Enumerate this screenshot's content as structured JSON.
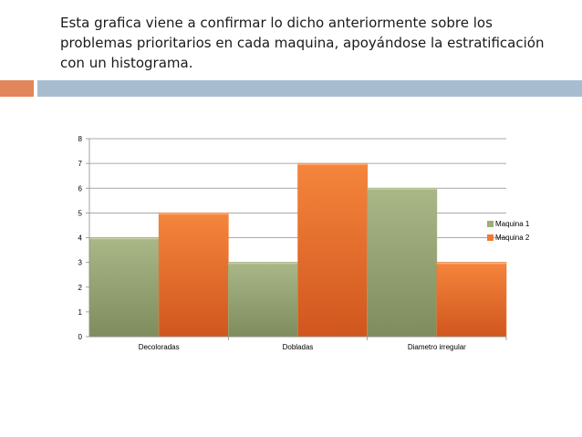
{
  "slide": {
    "text": "Esta grafica viene a confirmar lo dicho anteriormente sobre los problemas prioritarios en cada maquina, apoyándose la estratificación con un histograma."
  },
  "colors": {
    "accent_orange": "#e0865a",
    "accent_blue": "#a8bccf",
    "series_1": "#9fae78",
    "series_2": "#f07a30"
  },
  "chart_data": {
    "type": "bar",
    "categories": [
      "Decoloradas",
      "Dobladas",
      "Diametro irregular"
    ],
    "series": [
      {
        "name": "Maquina 1",
        "values": [
          4,
          3,
          6
        ]
      },
      {
        "name": "Maquina 2",
        "values": [
          5,
          7,
          3
        ]
      }
    ],
    "ylim": [
      0,
      8
    ],
    "yticks": [
      "0",
      "1",
      "2",
      "3",
      "4",
      "5",
      "6",
      "7",
      "8"
    ],
    "grid": true,
    "legend": "right"
  }
}
